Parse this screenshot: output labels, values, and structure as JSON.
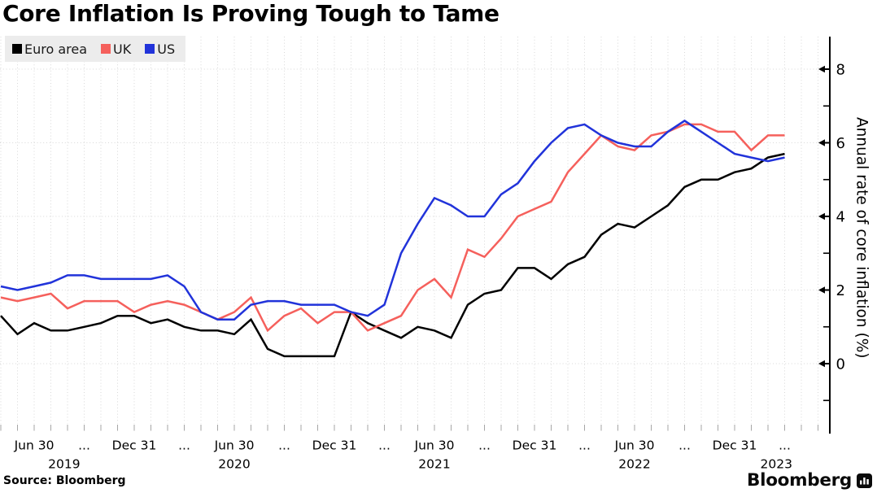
{
  "title": "Core Inflation Is Proving Tough to Tame",
  "source": "Source:  Bloomberg",
  "logo": {
    "text": "Bloomberg",
    "icon": "bar-chart-icon"
  },
  "y_axis": {
    "label": "Annual rate of core inflation (%)",
    "major_ticks": [
      0,
      2,
      4,
      6,
      8
    ],
    "minor_ticks": [
      -1,
      1,
      3,
      5,
      7
    ],
    "side": "right",
    "grid": "dotted horizontal at major ticks"
  },
  "x_axis": {
    "quarter_ticks": [
      {
        "month_index": 2,
        "label": "Jun 30"
      },
      {
        "month_index": 5,
        "label": "..."
      },
      {
        "month_index": 8,
        "label": "Dec 31"
      },
      {
        "month_index": 11,
        "label": "..."
      },
      {
        "month_index": 14,
        "label": "Jun 30"
      },
      {
        "month_index": 17,
        "label": "..."
      },
      {
        "month_index": 20,
        "label": "Dec 31"
      },
      {
        "month_index": 23,
        "label": "..."
      },
      {
        "month_index": 26,
        "label": "Jun 30"
      },
      {
        "month_index": 29,
        "label": "..."
      },
      {
        "month_index": 32,
        "label": "Dec 31"
      },
      {
        "month_index": 35,
        "label": "..."
      },
      {
        "month_index": 38,
        "label": "Jun 30"
      },
      {
        "month_index": 41,
        "label": "..."
      },
      {
        "month_index": 44,
        "label": "Dec 31"
      },
      {
        "month_index": 47,
        "label": "..."
      }
    ],
    "year_labels": [
      {
        "month_index": 3.8,
        "label": "2019"
      },
      {
        "month_index": 14,
        "label": "2020"
      },
      {
        "month_index": 26,
        "label": "2021"
      },
      {
        "month_index": 38,
        "label": "2022"
      },
      {
        "month_index": 46.5,
        "label": "2023"
      }
    ],
    "grid": "dotted vertical at every month"
  },
  "chart_data": {
    "type": "line",
    "title": "Core Inflation Is Proving Tough to Tame",
    "xlabel": "",
    "ylabel": "Annual rate of core inflation (%)",
    "ylim": [
      -1.9,
      8.9
    ],
    "legend_position": "top-left",
    "x": [
      "Apr 2019",
      "May 2019",
      "Jun 2019",
      "Jul 2019",
      "Aug 2019",
      "Sep 2019",
      "Oct 2019",
      "Nov 2019",
      "Dec 2019",
      "Jan 2020",
      "Feb 2020",
      "Mar 2020",
      "Apr 2020",
      "May 2020",
      "Jun 2020",
      "Jul 2020",
      "Aug 2020",
      "Sep 2020",
      "Oct 2020",
      "Nov 2020",
      "Dec 2020",
      "Jan 2021",
      "Feb 2021",
      "Mar 2021",
      "Apr 2021",
      "May 2021",
      "Jun 2021",
      "Jul 2021",
      "Aug 2021",
      "Sep 2021",
      "Oct 2021",
      "Nov 2021",
      "Dec 2021",
      "Jan 2022",
      "Feb 2022",
      "Mar 2022",
      "Apr 2022",
      "May 2022",
      "Jun 2022",
      "Jul 2022",
      "Aug 2022",
      "Sep 2022",
      "Oct 2022",
      "Nov 2022",
      "Dec 2022",
      "Jan 2023",
      "Feb 2023",
      "Mar 2023"
    ],
    "series": [
      {
        "name": "Euro area",
        "color": "#000000",
        "values": [
          1.3,
          0.8,
          1.1,
          0.9,
          0.9,
          1.0,
          1.1,
          1.3,
          1.3,
          1.1,
          1.2,
          1.0,
          0.9,
          0.9,
          0.8,
          1.2,
          0.4,
          0.2,
          0.2,
          0.2,
          0.2,
          1.4,
          1.1,
          0.9,
          0.7,
          1.0,
          0.9,
          0.7,
          1.6,
          1.9,
          2.0,
          2.6,
          2.6,
          2.3,
          2.7,
          2.9,
          3.5,
          3.8,
          3.7,
          4.0,
          4.3,
          4.8,
          5.0,
          5.0,
          5.2,
          5.3,
          5.6,
          5.7
        ]
      },
      {
        "name": "UK",
        "color": "#f5605c",
        "values": [
          1.8,
          1.7,
          1.8,
          1.9,
          1.5,
          1.7,
          1.7,
          1.7,
          1.4,
          1.6,
          1.7,
          1.6,
          1.4,
          1.2,
          1.4,
          1.8,
          0.9,
          1.3,
          1.5,
          1.1,
          1.4,
          1.4,
          0.9,
          1.1,
          1.3,
          2.0,
          2.3,
          1.8,
          3.1,
          2.9,
          3.4,
          4.0,
          4.2,
          4.4,
          5.2,
          5.7,
          6.2,
          5.9,
          5.8,
          6.2,
          6.3,
          6.5,
          6.5,
          6.3,
          6.3,
          5.8,
          6.2,
          6.2
        ]
      },
      {
        "name": "US",
        "color": "#2133da",
        "values": [
          2.1,
          2.0,
          2.1,
          2.2,
          2.4,
          2.4,
          2.3,
          2.3,
          2.3,
          2.3,
          2.4,
          2.1,
          1.4,
          1.2,
          1.2,
          1.6,
          1.7,
          1.7,
          1.6,
          1.6,
          1.6,
          1.4,
          1.3,
          1.6,
          3.0,
          3.8,
          4.5,
          4.3,
          4.0,
          4.0,
          4.6,
          4.9,
          5.5,
          6.0,
          6.4,
          6.5,
          6.2,
          6.0,
          5.9,
          5.9,
          6.3,
          6.6,
          6.3,
          6.0,
          5.7,
          5.6,
          5.5,
          5.6
        ]
      }
    ]
  },
  "colors": {
    "grid": "#d8d8d8",
    "axis": "#000000",
    "legend_background": "#ececec",
    "euro_area": "#000000",
    "uk": "#f5605c",
    "us": "#2133da"
  }
}
